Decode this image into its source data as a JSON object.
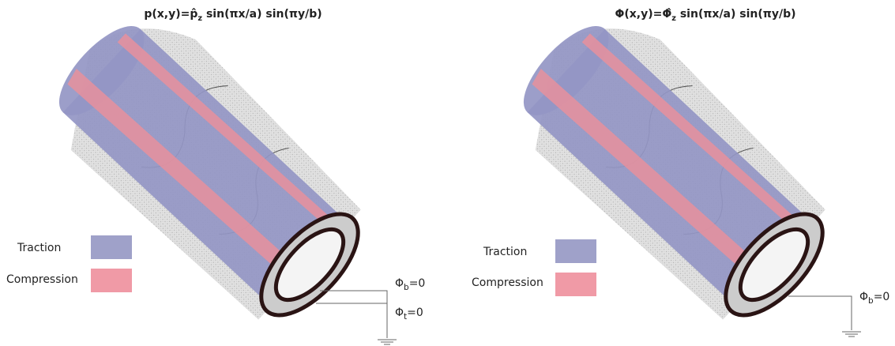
{
  "panels": [
    {
      "title": {
        "lhs": "p(x,y)=",
        "symbol": "p̂",
        "sub": "z",
        "rhs": " sin(πx/a) sin(πy/b)"
      },
      "legend": [
        "Traction",
        "Compression"
      ],
      "labels": [
        {
          "symbol": "Φ",
          "sub": "b",
          "rhs": "=0"
        },
        {
          "symbol": "Φ",
          "sub": "t",
          "rhs": "=0"
        }
      ]
    },
    {
      "title": {
        "lhs": "Φ(x,y)=",
        "symbol": "Φ̂",
        "sub": "z",
        "rhs": " sin(πx/a) sin(πy/b)"
      },
      "legend": [
        "Traction",
        "Compression"
      ],
      "labels": [
        {
          "symbol": "Φ",
          "sub": "b",
          "rhs": "=0"
        }
      ]
    }
  ]
}
